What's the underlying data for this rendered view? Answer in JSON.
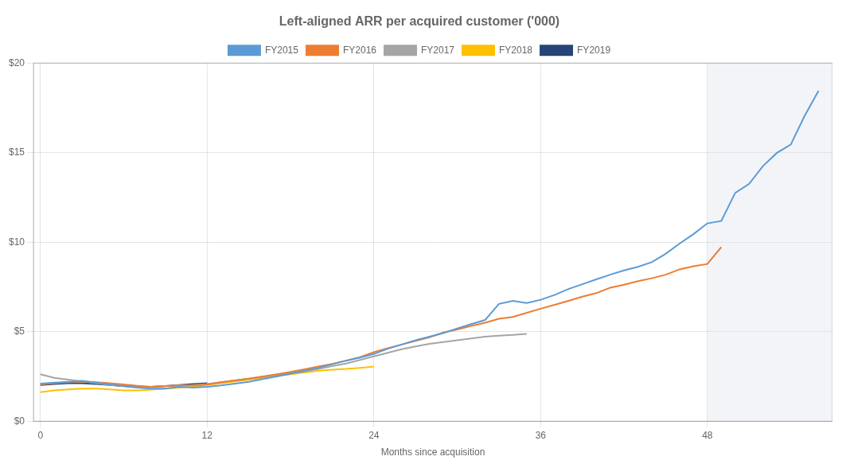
{
  "chart_data": {
    "type": "line",
    "title": "Left-aligned ARR per acquired customer ('000)",
    "xlabel": "Months since acquisition",
    "xlim": [
      -0.5,
      57
    ],
    "ylim": [
      0,
      20
    ],
    "xticks": [
      0,
      12,
      24,
      36,
      48
    ],
    "yticks": [
      {
        "value": 0,
        "label": "$0"
      },
      {
        "value": 5,
        "label": "$5"
      },
      {
        "value": 10,
        "label": "$10"
      },
      {
        "value": 15,
        "label": "$15"
      },
      {
        "value": 20,
        "label": "$20"
      }
    ],
    "grid": true,
    "legend": "top",
    "shaded_region": {
      "x_start": 48,
      "color": "#dde0eb"
    },
    "series": [
      {
        "name": "FY2015",
        "color": "#5b9bd5",
        "x": [
          0,
          1,
          2,
          3,
          4,
          5,
          6,
          7,
          8,
          9,
          10,
          11,
          12,
          13,
          14,
          15,
          16,
          17,
          18,
          19,
          20,
          21,
          22,
          23,
          24,
          25,
          26,
          27,
          28,
          29,
          30,
          31,
          32,
          33,
          34,
          35,
          36,
          37,
          38,
          39,
          40,
          41,
          42,
          43,
          44,
          45,
          46,
          47,
          48,
          49,
          50,
          51,
          52,
          53,
          54,
          55,
          56
        ],
        "values": [
          2.1,
          2.15,
          2.2,
          2.25,
          2.15,
          2.05,
          1.95,
          1.88,
          1.82,
          1.82,
          1.92,
          1.88,
          1.92,
          2.0,
          2.1,
          2.2,
          2.35,
          2.5,
          2.65,
          2.82,
          2.98,
          3.18,
          3.38,
          3.55,
          3.75,
          4.05,
          4.28,
          4.52,
          4.72,
          4.92,
          5.18,
          5.42,
          5.65,
          6.55,
          6.72,
          6.6,
          6.78,
          7.05,
          7.38,
          7.65,
          7.92,
          8.18,
          8.42,
          8.62,
          8.88,
          9.35,
          9.92,
          10.45,
          11.05,
          11.18,
          12.75,
          13.25,
          14.25,
          14.98,
          15.45,
          17.05,
          18.45
        ]
      },
      {
        "name": "FY2016",
        "color": "#ed7d31",
        "x": [
          0,
          1,
          2,
          3,
          4,
          5,
          6,
          7,
          8,
          9,
          10,
          11,
          12,
          13,
          14,
          15,
          16,
          17,
          18,
          19,
          20,
          21,
          22,
          23,
          24,
          25,
          26,
          27,
          28,
          29,
          30,
          31,
          32,
          33,
          34,
          35,
          36,
          37,
          38,
          39,
          40,
          41,
          42,
          43,
          44,
          45,
          46,
          47,
          48,
          49
        ],
        "values": [
          2.05,
          2.12,
          2.18,
          2.22,
          2.18,
          2.12,
          2.05,
          1.98,
          1.92,
          1.95,
          2.0,
          2.0,
          2.05,
          2.18,
          2.28,
          2.38,
          2.5,
          2.62,
          2.75,
          2.9,
          3.05,
          3.2,
          3.38,
          3.58,
          3.85,
          4.08,
          4.28,
          4.48,
          4.68,
          4.95,
          5.12,
          5.32,
          5.5,
          5.72,
          5.82,
          6.05,
          6.28,
          6.5,
          6.72,
          6.95,
          7.15,
          7.45,
          7.62,
          7.82,
          7.98,
          8.18,
          8.48,
          8.65,
          8.78,
          9.72
        ]
      },
      {
        "name": "FY2017",
        "color": "#a5a5a5",
        "x": [
          0,
          1,
          2,
          3,
          4,
          5,
          6,
          7,
          8,
          9,
          10,
          11,
          12,
          13,
          14,
          15,
          16,
          17,
          18,
          19,
          20,
          21,
          22,
          23,
          24,
          25,
          26,
          27,
          28,
          29,
          30,
          31,
          32,
          33,
          34,
          35
        ],
        "values": [
          2.62,
          2.42,
          2.32,
          2.22,
          2.12,
          2.02,
          1.96,
          1.92,
          1.92,
          1.96,
          2.0,
          2.02,
          2.08,
          2.18,
          2.28,
          2.38,
          2.48,
          2.58,
          2.68,
          2.78,
          2.92,
          3.08,
          3.22,
          3.42,
          3.62,
          3.82,
          4.02,
          4.18,
          4.32,
          4.42,
          4.52,
          4.62,
          4.72,
          4.78,
          4.82,
          4.88
        ]
      },
      {
        "name": "FY2018",
        "color": "#ffc000",
        "x": [
          0,
          1,
          2,
          3,
          4,
          5,
          6,
          7,
          8,
          9,
          10,
          11,
          12,
          13,
          14,
          15,
          16,
          17,
          18,
          19,
          20,
          21,
          22,
          23,
          24
        ],
        "values": [
          1.62,
          1.72,
          1.78,
          1.82,
          1.82,
          1.78,
          1.72,
          1.72,
          1.76,
          1.82,
          1.88,
          1.92,
          2.02,
          2.12,
          2.22,
          2.32,
          2.42,
          2.52,
          2.62,
          2.72,
          2.82,
          2.88,
          2.92,
          2.98,
          3.05
        ]
      },
      {
        "name": "FY2019",
        "color": "#264478",
        "x": [
          0,
          1,
          2,
          3,
          4,
          5,
          6,
          7,
          8,
          9,
          10,
          11,
          12
        ],
        "values": [
          2.02,
          2.08,
          2.12,
          2.12,
          2.08,
          2.02,
          1.96,
          1.92,
          1.92,
          1.96,
          2.02,
          2.08,
          2.12
        ]
      }
    ]
  }
}
